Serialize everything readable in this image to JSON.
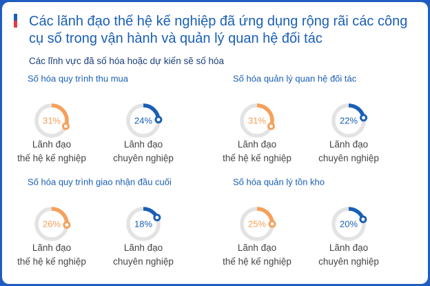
{
  "title": "Các lãnh đạo thế hệ kế nghiệp đã ứng dụng rộng rãi các công cụ số trong vận hành và quản lý quan hệ đối tác",
  "subtitle": "Các lĩnh vực đã số hóa hoặc dự kiến sẽ số hóa",
  "chart_data": [
    {
      "type": "gauge",
      "title": "Số hóa quy trình thu mua",
      "categories": [
        "Lãnh đạo\nthế hệ kế nghiệp",
        "Lãnh đạo\nchuyên nghiệp"
      ],
      "values": [
        31,
        24
      ],
      "value_labels": [
        "31%",
        "24%"
      ],
      "colors": [
        "#f5a05a",
        "#1a5fb4"
      ],
      "ylim": [
        0,
        100
      ]
    },
    {
      "type": "gauge",
      "title": "Số hóa quản lý quan hệ đối tác",
      "categories": [
        "Lãnh đạo\nthế hệ kế nghiệp",
        "Lãnh đạo\nchuyên nghiệp"
      ],
      "values": [
        31,
        22
      ],
      "value_labels": [
        "31%",
        "22%"
      ],
      "colors": [
        "#f5a05a",
        "#1a5fb4"
      ],
      "ylim": [
        0,
        100
      ]
    },
    {
      "type": "gauge",
      "title": "Số hóa quy trình giao nhận đầu cuối",
      "categories": [
        "Lãnh đạo\nthế hệ kế nghiệp",
        "Lãnh đạo\nchuyên nghiệp"
      ],
      "values": [
        26,
        18
      ],
      "value_labels": [
        "26%",
        "18%"
      ],
      "colors": [
        "#f5a05a",
        "#1a5fb4"
      ],
      "ylim": [
        0,
        100
      ]
    },
    {
      "type": "gauge",
      "title": "Số hóa quản lý tồn kho",
      "categories": [
        "Lãnh đạo\nthế hệ kế nghiệp",
        "Lãnh đạo\nchuyên nghiệp"
      ],
      "values": [
        25,
        20
      ],
      "value_labels": [
        "25%",
        "20%"
      ],
      "colors": [
        "#f5a05a",
        "#1a5fb4"
      ],
      "ylim": [
        0,
        100
      ]
    }
  ]
}
